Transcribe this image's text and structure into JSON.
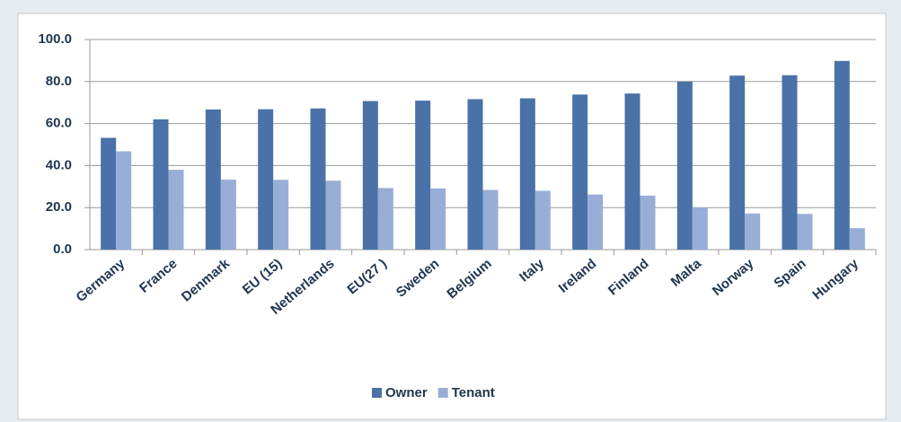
{
  "chart_data": {
    "type": "bar",
    "categories": [
      "Germany",
      "France",
      "Denmark",
      "EU (15)",
      "Netherlands",
      "EU(27 )",
      "Sweden",
      "Belgium",
      "Italy",
      "Ireland",
      "Finland",
      "Malta",
      "Norway",
      "Spain",
      "Hungary"
    ],
    "series": [
      {
        "name": "Owner",
        "color": "#4a72a8",
        "values": [
          53.2,
          62,
          66.7,
          66.8,
          67.2,
          70.7,
          70.9,
          71.6,
          72,
          73.8,
          74.3,
          80,
          82.8,
          83,
          89.8
        ]
      },
      {
        "name": "Tenant",
        "color": "#98aed6",
        "values": [
          46.8,
          38,
          33.3,
          33.2,
          32.8,
          29.3,
          29.1,
          28.4,
          28,
          26.2,
          25.7,
          20,
          17.2,
          17,
          10.2
        ]
      }
    ],
    "ylim": [
      0,
      100
    ],
    "yticks": [
      {
        "value": 0,
        "label": "0.0"
      },
      {
        "value": 20,
        "label": "20.0"
      },
      {
        "value": 40,
        "label": "40.0"
      },
      {
        "value": 60,
        "label": "60.0"
      },
      {
        "value": 80,
        "label": "80.0"
      },
      {
        "value": 100,
        "label": "100.0"
      }
    ],
    "grid": true,
    "legend": "bottom"
  }
}
